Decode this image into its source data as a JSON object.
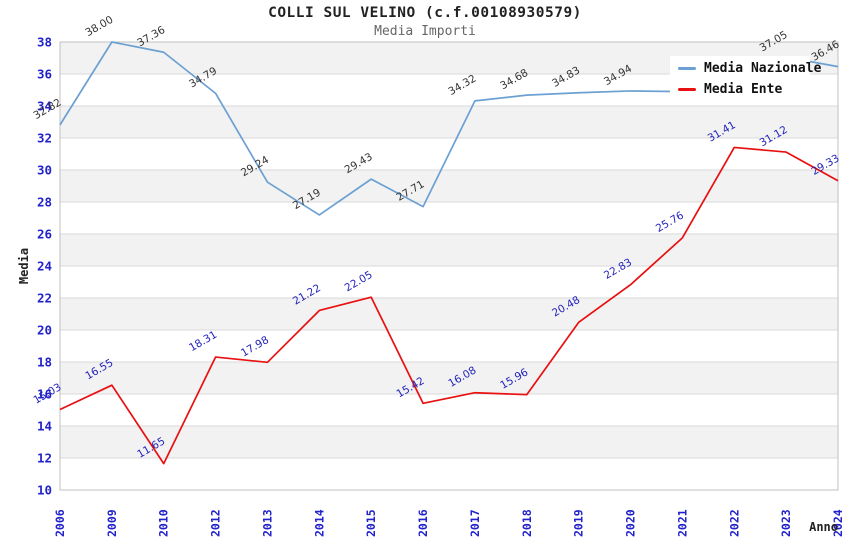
{
  "header": {
    "title": "COLLI SUL VELINO (c.f.00108930579)",
    "subtitle": "Media Importi"
  },
  "legend": {
    "items": [
      {
        "label": "Media Nazionale",
        "color": "#6ca0d2"
      },
      {
        "label": "Media Ente",
        "color": "#e81010"
      }
    ]
  },
  "chart_data": {
    "type": "line",
    "title": "COLLI SUL VELINO (c.f.00108930579)",
    "subtitle": "Media Importi",
    "xlabel": "Anno",
    "ylabel": "Media",
    "ylim": [
      10,
      38
    ],
    "ytick_step": 2,
    "grid": true,
    "legend_position": "top-right-overlay",
    "categories": [
      "2006",
      "2009",
      "2010",
      "2012",
      "2013",
      "2014",
      "2015",
      "2016",
      "2017",
      "2018",
      "2019",
      "2020",
      "2021",
      "2022",
      "2023",
      "2024"
    ],
    "series": [
      {
        "name": "Media Nazionale",
        "color": "#6ca0d2",
        "label_color": "#333333",
        "values": [
          32.82,
          38.0,
          37.36,
          34.79,
          29.24,
          27.19,
          29.43,
          27.71,
          34.32,
          34.68,
          34.83,
          34.94,
          34.9,
          36.0,
          37.05,
          36.46
        ],
        "point_labels": [
          "32.82",
          "38.00",
          "37.36",
          "34.79",
          "29.24",
          "27.19",
          "29.43",
          "27.71",
          "34.32",
          "34.68",
          "34.83",
          "34.94",
          "",
          "",
          "37.05",
          "36.46"
        ]
      },
      {
        "name": "Media Ente",
        "color": "#e81010",
        "label_color": "#2222bb",
        "values": [
          15.03,
          16.55,
          11.65,
          18.31,
          17.98,
          21.22,
          22.05,
          15.42,
          16.08,
          15.96,
          20.48,
          22.83,
          25.76,
          31.41,
          31.12,
          29.33
        ],
        "point_labels": [
          "15.03",
          "16.55",
          "11.65",
          "18.31",
          "17.98",
          "21.22",
          "22.05",
          "15.42",
          "16.08",
          "15.96",
          "20.48",
          "22.83",
          "25.76",
          "31.41",
          "31.12",
          "29.33"
        ]
      }
    ],
    "styling": {
      "band_colors": [
        "#f2f2f2",
        "#ffffff"
      ],
      "grid_color": "#dadada",
      "border_color": "#c0c0c0",
      "tick_label_color": "#2222cc",
      "axis_title_color": "#222222"
    }
  }
}
